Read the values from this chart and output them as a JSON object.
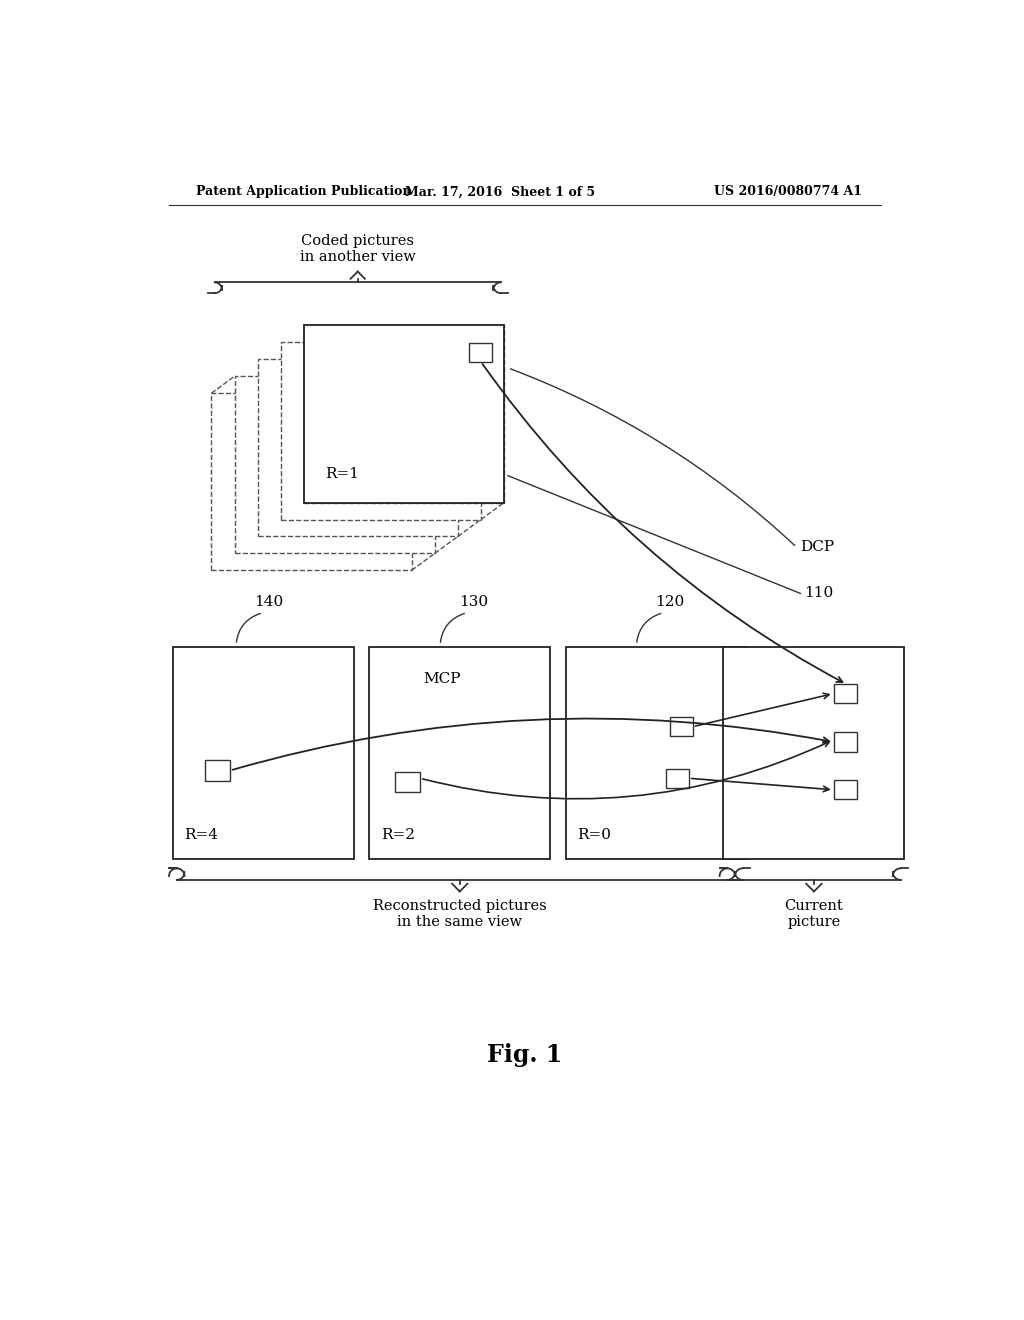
{
  "title_left": "Patent Application Publication",
  "title_center": "Mar. 17, 2016  Sheet 1 of 5",
  "title_right": "US 2016/0080774 A1",
  "fig_label": "Fig. 1",
  "bg_color": "#ffffff",
  "text_color": "#000000",
  "dashed_frame_color": "#555555",
  "solid_frame_color": "#222222",
  "arrow_color": "#111111"
}
